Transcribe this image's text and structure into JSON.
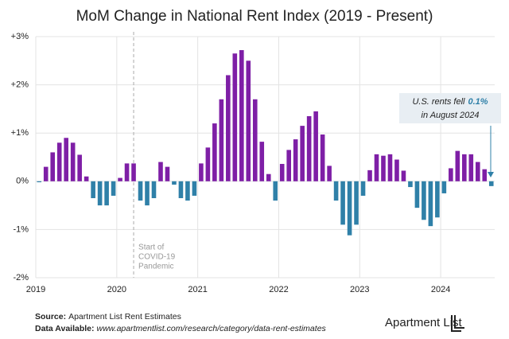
{
  "chart_data": {
    "type": "bar",
    "title": "MoM Change in National Rent Index (2019 - Present)",
    "categories": [
      "2019",
      null,
      null,
      null,
      null,
      null,
      null,
      null,
      null,
      null,
      null,
      null,
      "2020",
      null,
      null,
      null,
      null,
      null,
      null,
      null,
      null,
      null,
      null,
      null,
      "2021",
      null,
      null,
      null,
      null,
      null,
      null,
      null,
      null,
      null,
      null,
      null,
      "2022",
      null,
      null,
      null,
      null,
      null,
      null,
      null,
      null,
      null,
      null,
      null,
      "2023",
      null,
      null,
      null,
      null,
      null,
      null,
      null,
      null,
      null,
      null,
      null,
      "2024",
      null,
      null,
      null,
      null,
      null,
      null,
      null
    ],
    "values": [
      -0.02,
      0.3,
      0.6,
      0.8,
      0.9,
      0.8,
      0.55,
      0.1,
      -0.35,
      -0.5,
      -0.5,
      -0.3,
      0.07,
      0.37,
      0.37,
      -0.4,
      -0.5,
      -0.35,
      0.4,
      0.3,
      -0.07,
      -0.35,
      -0.4,
      -0.3,
      0.37,
      0.7,
      1.2,
      1.7,
      2.2,
      2.65,
      2.72,
      2.5,
      1.7,
      0.82,
      0.15,
      -0.4,
      0.36,
      0.65,
      0.87,
      1.15,
      1.35,
      1.45,
      0.97,
      0.32,
      -0.4,
      -0.9,
      -1.12,
      -0.9,
      -0.3,
      0.23,
      0.56,
      0.53,
      0.56,
      0.45,
      0.22,
      -0.12,
      -0.55,
      -0.8,
      -0.93,
      -0.75,
      -0.25,
      0.27,
      0.63,
      0.56,
      0.56,
      0.4,
      0.25,
      -0.1
    ],
    "color_positive": "#7e1fa6",
    "color_negative": "#2f80a8",
    "ylim": [
      -2,
      3
    ],
    "yticks": [
      {
        "value": -2,
        "label": "-2%"
      },
      {
        "value": -1,
        "label": "-1%"
      },
      {
        "value": 0,
        "label": "0%"
      },
      {
        "value": 1,
        "label": "+1%"
      },
      {
        "value": 2,
        "label": "+2%"
      },
      {
        "value": 3,
        "label": "+3%"
      }
    ],
    "grid": true,
    "covid_annotation": [
      "Start of",
      "COVID-19",
      "Pandemic"
    ],
    "callout": {
      "prefix": "U.S. rents fell",
      "highlight": "0.1%",
      "line2": "in August 2024"
    },
    "source_label": "Source:",
    "source": "Apartment List Rent Estimates",
    "data_label": "Data Available:",
    "data_url": "www.apartmentlist.com/research/category/data-rent-estimates",
    "logo": "Apartment List"
  }
}
